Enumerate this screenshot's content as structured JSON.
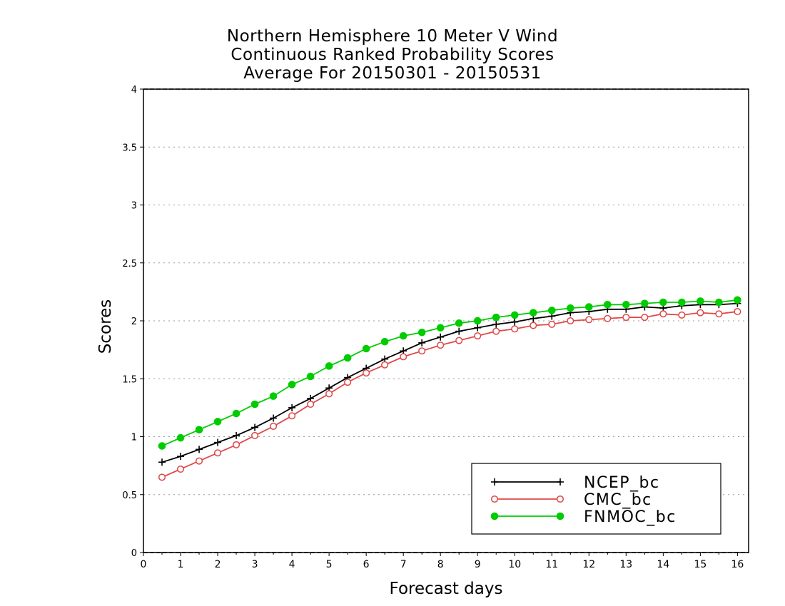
{
  "chart_data": {
    "type": "line",
    "title_lines": [
      "Northern Hemisphere 10 Meter V Wind",
      "Continuous Ranked Probability Scores",
      "Average For 20150301 - 20150531"
    ],
    "xlabel": "Forecast days",
    "ylabel": "Scores",
    "xlim": [
      0,
      16.3
    ],
    "ylim": [
      0,
      4
    ],
    "xticks": [
      0,
      1,
      2,
      3,
      4,
      5,
      6,
      7,
      8,
      9,
      10,
      11,
      12,
      13,
      14,
      15,
      16
    ],
    "yticks": [
      0,
      0.5,
      1,
      1.5,
      2,
      2.5,
      3,
      3.5,
      4
    ],
    "ytick_labels": [
      "0",
      "0.5",
      "1",
      "1.5",
      "2",
      "2.5",
      "3",
      "3.5",
      "4"
    ],
    "grid": "horizontal dotted",
    "legend_position": "bottom-right",
    "x": [
      0.5,
      1,
      1.5,
      2,
      2.5,
      3,
      3.5,
      4,
      4.5,
      5,
      5.5,
      6,
      6.5,
      7,
      7.5,
      8,
      8.5,
      9,
      9.5,
      10,
      10.5,
      11,
      11.5,
      12,
      12.5,
      13,
      13.5,
      14,
      14.5,
      15,
      15.5,
      16
    ],
    "series": [
      {
        "name": "NCEP_bc",
        "color": "#000000",
        "marker": "plus",
        "values": [
          0.78,
          0.83,
          0.89,
          0.95,
          1.01,
          1.08,
          1.16,
          1.25,
          1.33,
          1.42,
          1.51,
          1.59,
          1.67,
          1.74,
          1.81,
          1.86,
          1.91,
          1.94,
          1.97,
          1.99,
          2.02,
          2.04,
          2.07,
          2.08,
          2.1,
          2.1,
          2.12,
          2.11,
          2.13,
          2.14,
          2.14,
          2.15
        ]
      },
      {
        "name": "CMC_bc",
        "color": "#e04848",
        "marker": "open-circle",
        "values": [
          0.65,
          0.72,
          0.79,
          0.86,
          0.93,
          1.01,
          1.09,
          1.18,
          1.28,
          1.37,
          1.47,
          1.55,
          1.62,
          1.69,
          1.74,
          1.79,
          1.83,
          1.87,
          1.91,
          1.93,
          1.96,
          1.97,
          2.0,
          2.01,
          2.02,
          2.03,
          2.03,
          2.06,
          2.05,
          2.07,
          2.06,
          2.08
        ]
      },
      {
        "name": "FNMOC_bc",
        "color": "#00cc00",
        "marker": "filled-circle",
        "values": [
          0.92,
          0.99,
          1.06,
          1.13,
          1.2,
          1.28,
          1.35,
          1.45,
          1.52,
          1.61,
          1.68,
          1.76,
          1.82,
          1.87,
          1.9,
          1.94,
          1.98,
          2.0,
          2.03,
          2.05,
          2.07,
          2.09,
          2.11,
          2.12,
          2.14,
          2.14,
          2.15,
          2.16,
          2.16,
          2.17,
          2.16,
          2.18
        ]
      }
    ]
  }
}
